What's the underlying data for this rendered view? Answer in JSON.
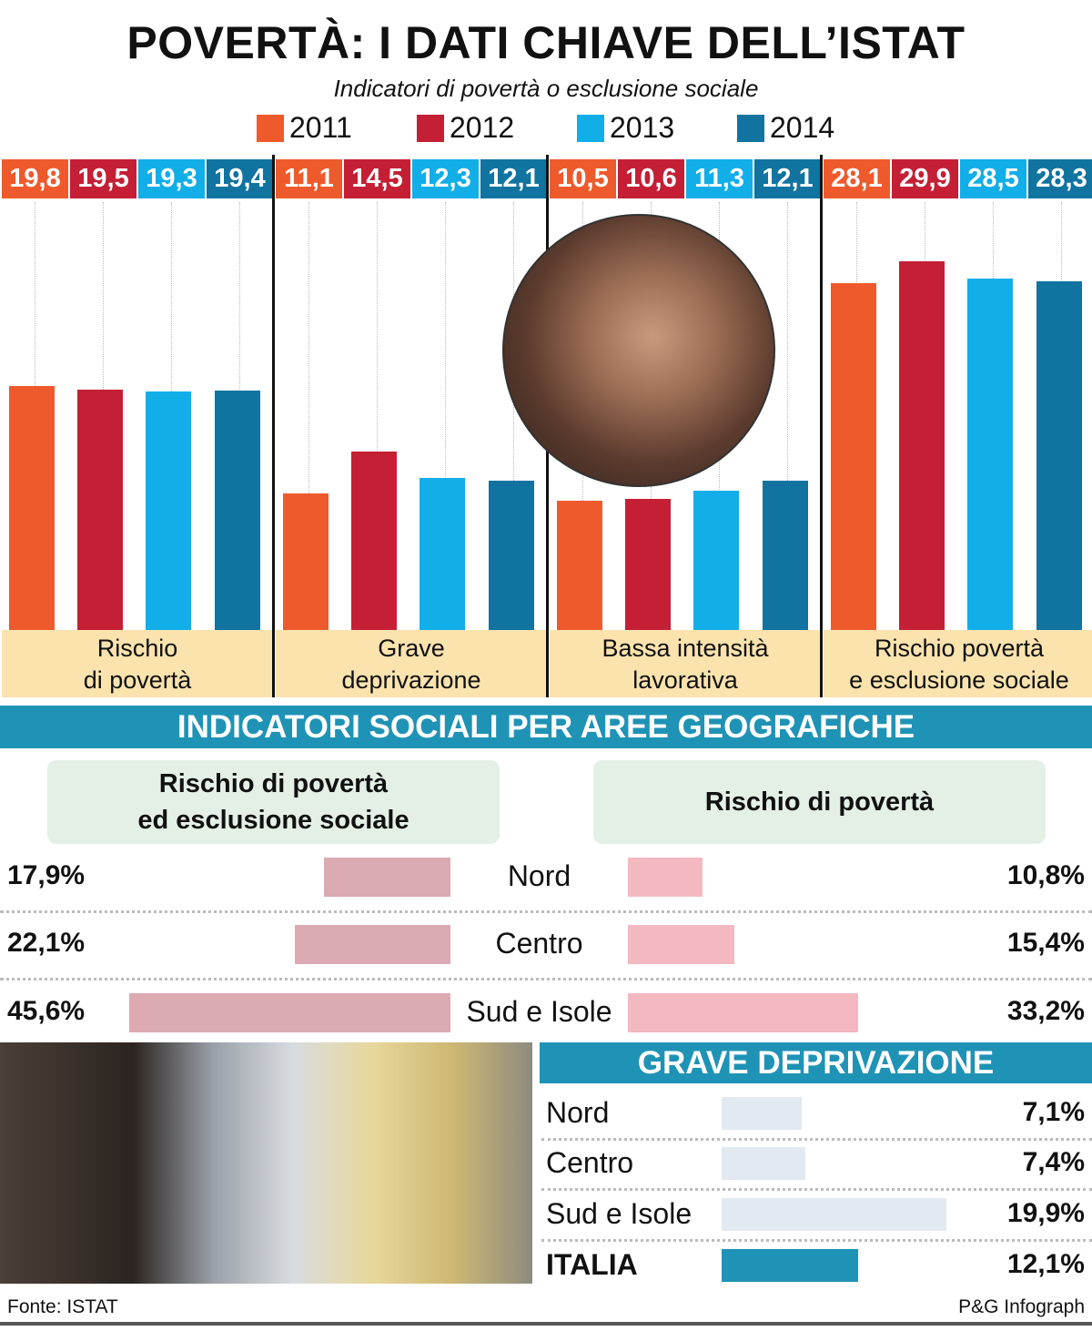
{
  "title": "POVERTÀ: I DATI CHIAVE DELL’ISTAT",
  "subtitle": "Indicatori di povertà o esclusione sociale",
  "colors": {
    "2011": "#ee5a2c",
    "2012": "#c41f35",
    "2013": "#12aee8",
    "2014": "#11739f",
    "teal": "#1f93b5"
  },
  "chart_data": {
    "type": "bar",
    "title": "Indicatori di povertà o esclusione sociale",
    "categories": [
      "Rischio di povertà",
      "Grave deprivazione",
      "Bassa intensità lavorativa",
      "Rischio povertà e esclusione sociale"
    ],
    "category_lines": [
      [
        "Rischio",
        "di povertà"
      ],
      [
        "Grave",
        "deprivazione"
      ],
      [
        "Bassa intensità",
        "lavorativa"
      ],
      [
        "Rischio povertà",
        "e esclusione sociale"
      ]
    ],
    "series": [
      {
        "name": "2011",
        "values": [
          "19,8",
          "11,1",
          "10,5",
          "28,1"
        ]
      },
      {
        "name": "2012",
        "values": [
          "19,5",
          "14,5",
          "10,6",
          "29,9"
        ]
      },
      {
        "name": "2013",
        "values": [
          "19,3",
          "12,3",
          "11,3",
          "28,5"
        ]
      },
      {
        "name": "2014",
        "values": [
          "19,4",
          "12,1",
          "12,1",
          "28,3"
        ]
      }
    ],
    "ylim": [
      0,
      30
    ],
    "legend": "top"
  },
  "geo": {
    "header": "INDICATORI SOCIALI PER AREE GEOGRAFICHE",
    "left_title": [
      "Rischio di povertà",
      "ed esclusione sociale"
    ],
    "right_title": "Rischio di povertà",
    "rows": [
      {
        "area": "Nord",
        "left": "17,9%",
        "left_value": 17.9,
        "right": "10,8%",
        "right_value": 10.8
      },
      {
        "area": "Centro",
        "left": "22,1%",
        "left_value": 22.1,
        "right": "15,4%",
        "right_value": 15.4
      },
      {
        "area": "Sud e Isole",
        "left": "45,6%",
        "left_value": 45.6,
        "right": "33,2%",
        "right_value": 33.2
      }
    ]
  },
  "grave": {
    "header": "GRAVE DEPRIVAZIONE",
    "rows": [
      {
        "area": "Nord",
        "label": "7,1%",
        "value": 7.1
      },
      {
        "area": "Centro",
        "label": "7,4%",
        "value": 7.4
      },
      {
        "area": "Sud e Isole",
        "label": "19,9%",
        "value": 19.9
      },
      {
        "area": "ITALIA",
        "label": "12,1%",
        "value": 12.1
      }
    ]
  },
  "footer": {
    "source": "Fonte: ISTAT",
    "credit": "P&G Infograph"
  }
}
